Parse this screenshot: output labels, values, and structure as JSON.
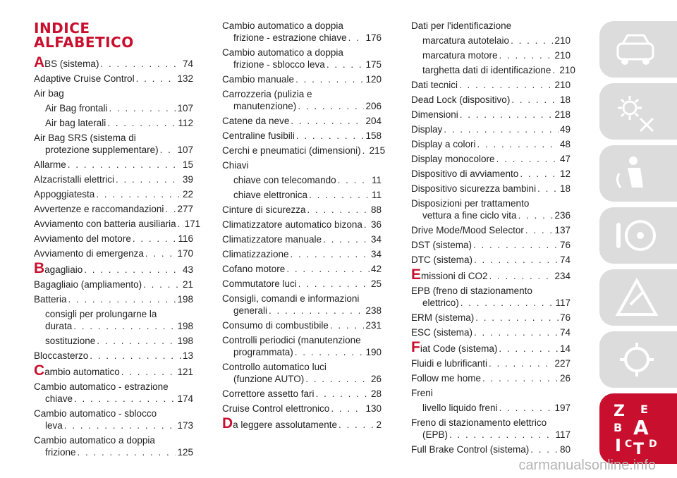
{
  "title_line1": "INDICE",
  "title_line2": "ALFABETICO",
  "col1": [
    {
      "drop": "A",
      "text": "BS (sistema)",
      "page": "74"
    },
    {
      "text": "Adaptive Cruise Control",
      "page": "132"
    },
    {
      "text": "Air bag",
      "page": ""
    },
    {
      "text": "Air Bag frontali",
      "page": "107",
      "indent": true
    },
    {
      "text": "Air bag laterali",
      "page": "112",
      "indent": true
    },
    {
      "text": "Air Bag SRS (sistema di",
      "cont": "protezione supplementare)",
      "page": "107"
    },
    {
      "text": "Allarme",
      "page": "15"
    },
    {
      "text": "Alzacristalli elettrici",
      "page": "39"
    },
    {
      "text": "Appoggiatesta",
      "page": "22"
    },
    {
      "text": "Avvertenze e raccomandazioni",
      "page": "277"
    },
    {
      "text": "Avviamento con batteria ausiliaria",
      "page": "171"
    },
    {
      "text": "Avviamento del motore",
      "page": "116"
    },
    {
      "text": "Avviamento di emergenza",
      "page": "170"
    },
    {
      "drop": "B",
      "text": "agagliaio",
      "page": "43"
    },
    {
      "text": "Bagagliaio (ampliamento)",
      "page": "21"
    },
    {
      "text": "Batteria",
      "page": "198"
    },
    {
      "text": "consigli per prolungarne la",
      "cont": "durata",
      "page": "198",
      "indent": true
    },
    {
      "text": "sostituzione",
      "page": "198",
      "indent": true
    },
    {
      "text": "Bloccasterzo",
      "page": "13"
    },
    {
      "drop": "C",
      "text": "ambio automatico",
      "page": "121"
    },
    {
      "text": "Cambio automatico - estrazione",
      "cont": "chiave",
      "page": "174"
    },
    {
      "text": "Cambio automatico - sblocco",
      "cont": "leva",
      "page": "173"
    },
    {
      "text": "Cambio automatico a doppia",
      "cont": "frizione",
      "page": "125"
    }
  ],
  "col2": [
    {
      "text": "Cambio automatico a doppia",
      "cont": "frizione - estrazione chiave",
      "page": "176"
    },
    {
      "text": "Cambio automatico a doppia",
      "cont": "frizione - sblocco leva",
      "page": "175"
    },
    {
      "text": "Cambio manuale",
      "page": "120"
    },
    {
      "text": "Carrozzeria (pulizia e",
      "cont": "manutenzione)",
      "page": "206"
    },
    {
      "text": "Catene da neve",
      "page": "204"
    },
    {
      "text": "Centraline fusibili",
      "page": "158"
    },
    {
      "text": "Cerchi e pneumatici (dimensioni)",
      "page": "215"
    },
    {
      "text": "Chiavi",
      "page": ""
    },
    {
      "text": "chiave con telecomando",
      "page": "11",
      "indent": true
    },
    {
      "text": "chiave elettronica",
      "page": "11",
      "indent": true
    },
    {
      "text": "Cinture di sicurezza",
      "page": "88"
    },
    {
      "text": "Climatizzatore automatico bizona",
      "page": "36"
    },
    {
      "text": "Climatizzatore manuale",
      "page": "34"
    },
    {
      "text": "Climatizzazione",
      "page": "34"
    },
    {
      "text": "Cofano motore",
      "page": "42"
    },
    {
      "text": "Commutatore luci",
      "page": "25"
    },
    {
      "text": "Consigli, comandi e informazioni",
      "cont": "generali",
      "page": "238"
    },
    {
      "text": "Consumo di combustibile",
      "page": "231"
    },
    {
      "text": "Controlli periodici (manutenzione",
      "cont": "programmata)",
      "page": "190"
    },
    {
      "text": "Controllo automatico luci",
      "cont": "(funzione AUTO)",
      "page": "26"
    },
    {
      "text": "Correttore assetto fari",
      "page": "28"
    },
    {
      "text": "Cruise Control elettronico",
      "page": "130"
    },
    {
      "drop": "D",
      "text": "a leggere assolutamente",
      "page": "2"
    }
  ],
  "col3": [
    {
      "text": "Dati per l'identificazione",
      "page": ""
    },
    {
      "text": "marcatura autotelaio",
      "page": "210",
      "indent": true
    },
    {
      "text": "marcatura motore",
      "page": "210",
      "indent": true
    },
    {
      "text": "targhetta dati di identificazione",
      "page": "210",
      "indent": true
    },
    {
      "text": "Dati tecnici",
      "page": "210"
    },
    {
      "text": "Dead Lock (dispositivo)",
      "page": "18"
    },
    {
      "text": "Dimensioni",
      "page": "218"
    },
    {
      "text": "Display",
      "page": "49"
    },
    {
      "text": "Display a colori",
      "page": "48"
    },
    {
      "text": "Display monocolore",
      "page": "47"
    },
    {
      "text": "Dispositivo di avviamento",
      "page": "12"
    },
    {
      "text": "Dispositivo sicurezza bambini",
      "page": "18"
    },
    {
      "text": "Disposizioni per trattamento",
      "cont": "vettura a fine ciclo vita",
      "page": "236"
    },
    {
      "text": "Drive Mode/Mood Selector",
      "page": "137"
    },
    {
      "text": "DST (sistema)",
      "page": "76"
    },
    {
      "text": "DTC (sistema)",
      "page": "74"
    },
    {
      "drop": "E",
      "text": "missioni di CO2",
      "page": "234"
    },
    {
      "text": "EPB (freno di stazionamento",
      "cont": "elettrico)",
      "page": "117"
    },
    {
      "text": "ERM (sistema)",
      "page": "76"
    },
    {
      "text": "ESC (sistema)",
      "page": "74"
    },
    {
      "drop": "F",
      "text": "iat Code (sistema)",
      "page": "14"
    },
    {
      "text": "Fluidi e lubrificanti",
      "page": "227"
    },
    {
      "text": "Follow me home",
      "page": "26"
    },
    {
      "text": "Freni",
      "page": ""
    },
    {
      "text": "livello liquido freni",
      "page": "197",
      "indent": true
    },
    {
      "text": "Freno di stazionamento elettrico",
      "cont": "(EPB)",
      "page": "117"
    },
    {
      "text": "Full Brake Control (sistema)",
      "page": "80"
    }
  ],
  "sidebar_tabs": [
    {
      "icon": "car-dashboard-icon"
    },
    {
      "icon": "sun-warning-icon"
    },
    {
      "icon": "airbag-seat-icon"
    },
    {
      "icon": "steering-wheel-icon"
    },
    {
      "icon": "breakdown-warning-icon"
    },
    {
      "icon": "maintenance-icon"
    },
    {
      "icon": "index-letters-icon",
      "active": true,
      "letters": "ZEBACITD"
    }
  ],
  "watermark": "carmanualsonline.info",
  "colors": {
    "accent": "#c8102e",
    "tab": "#dcdcdc"
  }
}
